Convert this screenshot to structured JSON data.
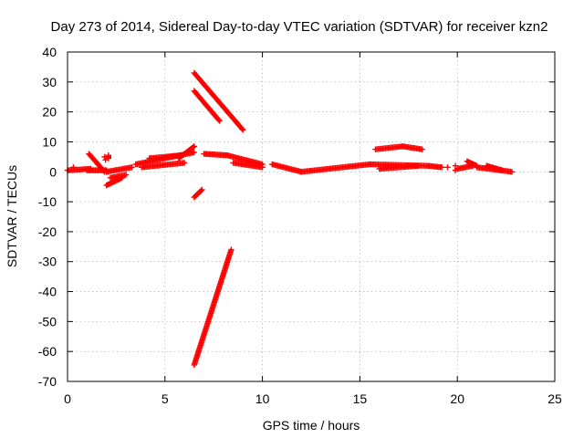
{
  "chart_data": {
    "type": "scatter",
    "title": "Day 273 of 2014, Sidereal Day-to-day VTEC variation (SDTVAR) for receiver kzn2",
    "xlabel": "GPS time / hours",
    "ylabel": "SDTVAR / TECUs",
    "xlim": [
      0,
      25
    ],
    "ylim": [
      -70,
      40
    ],
    "xticks": [
      0,
      5,
      10,
      15,
      20,
      25
    ],
    "yticks": [
      -70,
      -60,
      -50,
      -40,
      -30,
      -20,
      -10,
      0,
      10,
      20,
      30,
      40
    ],
    "xtick_labels": [
      "0",
      "5",
      "10",
      "15",
      "20",
      "25"
    ],
    "ytick_labels": [
      "-70",
      "-60",
      "-50",
      "-40",
      "-30",
      "-20",
      "-10",
      "0",
      "10",
      "20",
      "30",
      "40"
    ],
    "grid": true,
    "marker": "plus",
    "color": "#ff0000",
    "segments": [
      {
        "x0": 0.0,
        "y0": 0.5,
        "x1": 1.2,
        "y1": 1.0
      },
      {
        "x0": 1.0,
        "y0": 0.5,
        "x1": 2.0,
        "y1": 0.5
      },
      {
        "x0": 1.1,
        "y0": 6.0,
        "x1": 1.9,
        "y1": 0.0
      },
      {
        "x0": 2.0,
        "y0": 0.0,
        "x1": 3.3,
        "y1": 1.5
      },
      {
        "x0": 2.2,
        "y0": -2.0,
        "x1": 3.0,
        "y1": -1.0
      },
      {
        "x0": 2.0,
        "y0": -4.5,
        "x1": 2.8,
        "y1": -2.0
      },
      {
        "x0": 2.1,
        "y0": 4.5,
        "x1": 2.1,
        "y1": 5.5
      },
      {
        "x0": 3.5,
        "y0": 2.5,
        "x1": 6.5,
        "y1": 6.5
      },
      {
        "x0": 3.8,
        "y0": 1.5,
        "x1": 6.0,
        "y1": 3.0
      },
      {
        "x0": 4.2,
        "y0": 4.5,
        "x1": 5.8,
        "y1": 5.5
      },
      {
        "x0": 5.7,
        "y0": 4.5,
        "x1": 6.5,
        "y1": 8.5
      },
      {
        "x0": 6.5,
        "y0": 33.0,
        "x1": 9.0,
        "y1": 14.0
      },
      {
        "x0": 6.5,
        "y0": 27.0,
        "x1": 7.8,
        "y1": 17.0
      },
      {
        "x0": 6.5,
        "y0": -8.5,
        "x1": 6.9,
        "y1": -6.0
      },
      {
        "x0": 6.5,
        "y0": -64.5,
        "x1": 8.4,
        "y1": -26.0
      },
      {
        "x0": 7.0,
        "y0": 6.0,
        "x1": 8.2,
        "y1": 5.5
      },
      {
        "x0": 8.2,
        "y0": 5.5,
        "x1": 10.0,
        "y1": 2.5
      },
      {
        "x0": 8.5,
        "y0": 3.0,
        "x1": 10.0,
        "y1": 1.5
      },
      {
        "x0": 10.5,
        "y0": 2.5,
        "x1": 12.0,
        "y1": 0.0
      },
      {
        "x0": 12.0,
        "y0": 0.0,
        "x1": 15.5,
        "y1": 2.5
      },
      {
        "x0": 15.5,
        "y0": 2.5,
        "x1": 18.5,
        "y1": 2.0
      },
      {
        "x0": 15.8,
        "y0": 7.5,
        "x1": 17.2,
        "y1": 8.5
      },
      {
        "x0": 17.2,
        "y0": 8.5,
        "x1": 18.2,
        "y1": 7.5
      },
      {
        "x0": 16.0,
        "y0": 1.0,
        "x1": 18.0,
        "y1": 2.0
      },
      {
        "x0": 18.5,
        "y0": 2.0,
        "x1": 19.2,
        "y1": 1.5
      },
      {
        "x0": 20.0,
        "y0": 1.0,
        "x1": 20.8,
        "y1": 2.0
      },
      {
        "x0": 20.5,
        "y0": 3.5,
        "x1": 21.0,
        "y1": 2.0
      },
      {
        "x0": 21.0,
        "y0": 1.5,
        "x1": 22.8,
        "y1": 0.0
      },
      {
        "x0": 21.5,
        "y0": 2.0,
        "x1": 22.3,
        "y1": 0.5
      }
    ],
    "isolated_points": [
      {
        "x": 0.3,
        "y": 1.5
      },
      {
        "x": 1.9,
        "y": 5.0
      },
      {
        "x": 1.95,
        "y": 4.0
      },
      {
        "x": 19.5,
        "y": 1.5
      },
      {
        "x": 19.9,
        "y": 2.0
      },
      {
        "x": 19.9,
        "y": 0.5
      }
    ]
  }
}
